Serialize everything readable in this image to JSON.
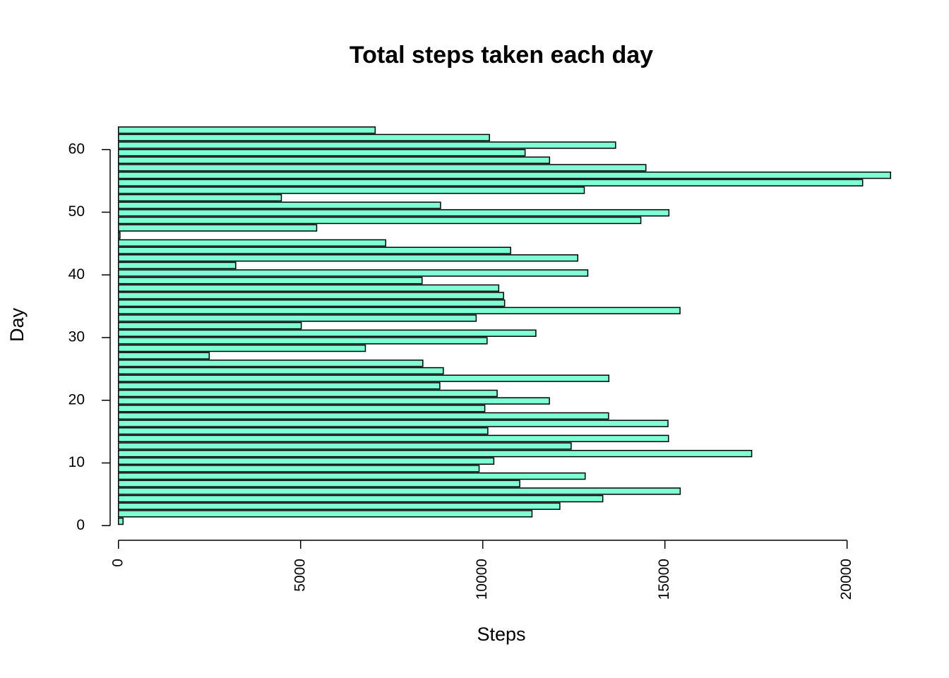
{
  "chart_data": {
    "type": "barh",
    "title": "Total steps taken each day",
    "xlabel": "Steps",
    "ylabel": "Day",
    "values": [
      126,
      11352,
      12116,
      13294,
      15420,
      11015,
      12811,
      9900,
      10304,
      17382,
      12426,
      15098,
      10139,
      15084,
      13452,
      10056,
      11829,
      10395,
      8821,
      13460,
      8918,
      8355,
      2492,
      6778,
      10119,
      11458,
      5018,
      9819,
      15414,
      10600,
      10571,
      10439,
      8334,
      12883,
      3219,
      12608,
      10765,
      7336,
      41,
      5441,
      14339,
      15110,
      8841,
      4472,
      12787,
      20427,
      21194,
      14478,
      11834,
      11162,
      13646,
      10183,
      7047
    ],
    "color": "#7fffd4",
    "xlim": [
      -848,
      22042
    ],
    "xticks": [
      0,
      5000,
      10000,
      15000,
      20000
    ],
    "ylim": [
      -2.9,
      64.7
    ],
    "yticks": [
      0,
      10,
      20,
      30,
      40,
      50,
      60
    ]
  }
}
